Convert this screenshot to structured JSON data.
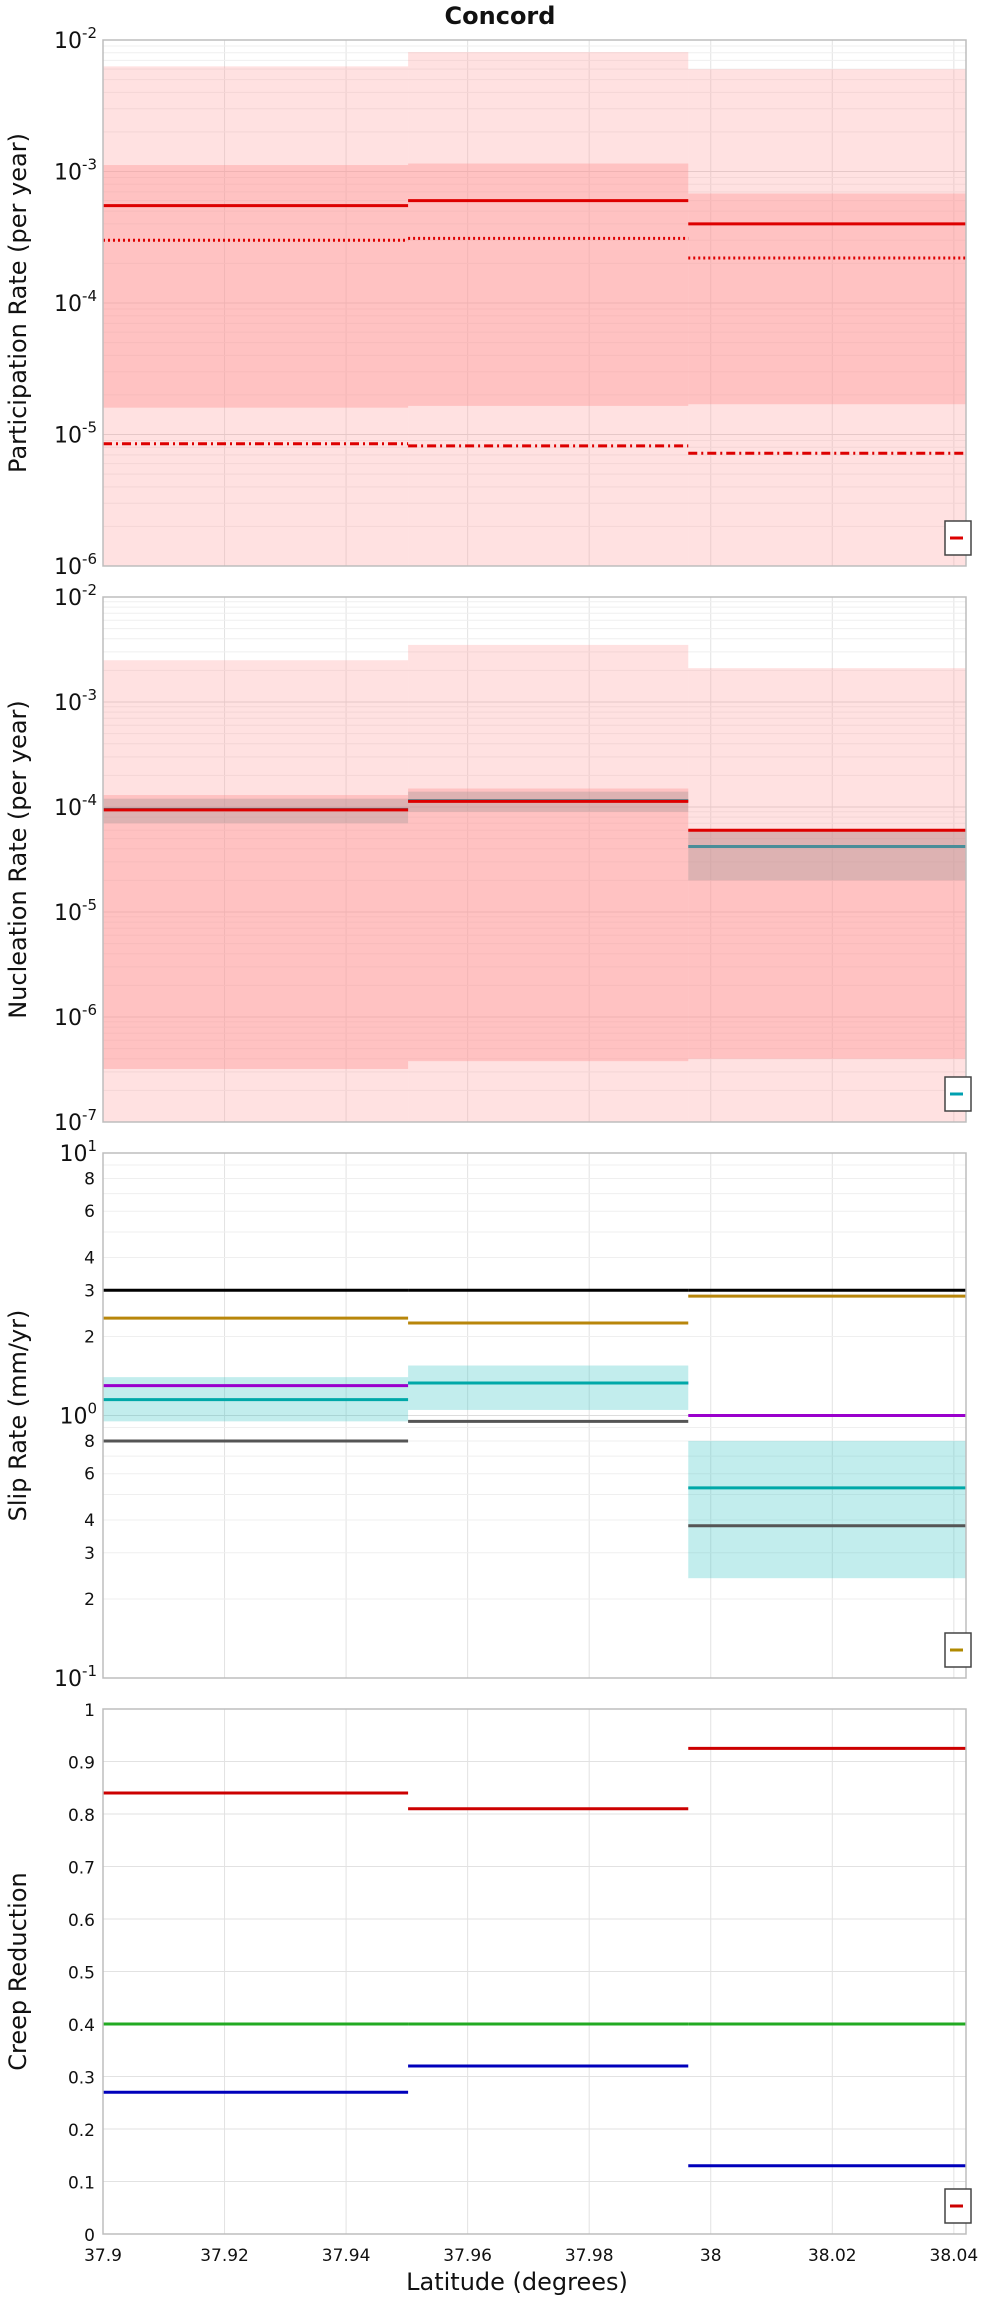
{
  "figure_title": "Concord",
  "x_axis": {
    "label": "Latitude (degrees)",
    "range": [
      37.9,
      38.042
    ],
    "ticks": [
      37.9,
      37.92,
      37.94,
      37.96,
      37.98,
      38.0,
      38.02,
      38.04
    ],
    "tick_labels": [
      "37.9",
      "37.92",
      "37.94",
      "37.96",
      "37.98",
      "38",
      "38.02",
      "38.04"
    ]
  },
  "chart_data": [
    {
      "type": "line",
      "step": true,
      "ylabel": "Participation Rate (per year)",
      "scale": "log",
      "ylim": [
        1e-06,
        0.01
      ],
      "grid": true,
      "legend": "bottom-right",
      "legend_colors": [
        "#dd0000"
      ],
      "major_ticks": [
        {
          "base": "10",
          "exp": "-2"
        },
        {
          "base": "10",
          "exp": "-3"
        },
        {
          "base": "10",
          "exp": "-4"
        },
        {
          "base": "10",
          "exp": "-5"
        },
        {
          "base": "10",
          "exp": "-6"
        }
      ],
      "segments": [
        [
          37.9,
          37.9502
        ],
        [
          37.9502,
          37.9963
        ],
        [
          37.9963,
          38.042
        ]
      ],
      "bands": [
        {
          "color": "#ff9c9c",
          "opacity": 0.3,
          "lower": [
            1e-06,
            1e-06,
            1e-06
          ],
          "upper": [
            0.0063,
            0.0081,
            0.006
          ]
        },
        {
          "color": "#ff9090",
          "opacity": 0.38,
          "lower": [
            1.6e-05,
            1.65e-05,
            1.7e-05
          ],
          "upper": [
            0.00112,
            0.00115,
            0.00068
          ]
        }
      ],
      "series": [
        {
          "style": "solid",
          "color": "#dd0000",
          "values": [
            0.00055,
            0.0006,
            0.0004
          ]
        },
        {
          "style": "dotted",
          "color": "#dd0000",
          "values": [
            0.0003,
            0.00031,
            0.00022
          ]
        },
        {
          "style": "dashdot",
          "color": "#dd0000",
          "values": [
            8.5e-06,
            8.2e-06,
            7.2e-06
          ]
        }
      ]
    },
    {
      "type": "line",
      "step": true,
      "ylabel": "Nucleation Rate (per year)",
      "scale": "log",
      "ylim": [
        1e-07,
        0.01
      ],
      "grid": true,
      "legend": "bottom-right",
      "legend_colors": [
        "#00a0b0"
      ],
      "major_ticks": [
        {
          "base": "10",
          "exp": "-2"
        },
        {
          "base": "10",
          "exp": "-3"
        },
        {
          "base": "10",
          "exp": "-4"
        },
        {
          "base": "10",
          "exp": "-5"
        },
        {
          "base": "10",
          "exp": "-6"
        },
        {
          "base": "10",
          "exp": "-7"
        }
      ],
      "segments": [
        [
          37.9,
          37.9502
        ],
        [
          37.9502,
          37.9963
        ],
        [
          37.9963,
          38.042
        ]
      ],
      "bands": [
        {
          "color": "#ff9c9c",
          "opacity": 0.3,
          "lower": [
            1e-07,
            1e-07,
            1e-07
          ],
          "upper": [
            0.0025,
            0.0035,
            0.0021
          ]
        },
        {
          "color": "#ff9090",
          "opacity": 0.38,
          "lower": [
            3.2e-07,
            3.8e-07,
            4e-07
          ],
          "upper": [
            0.00013,
            0.00015,
            6e-05
          ]
        },
        {
          "color": "#909090",
          "opacity": 0.3,
          "lower": [
            7e-05,
            9e-05,
            2e-05
          ],
          "upper": [
            0.00012,
            0.00014,
            6e-05
          ]
        }
      ],
      "series": [
        {
          "style": "solid",
          "color": "#4a8d98",
          "values": [
            9.5e-05,
            0.000115,
            4.2e-05
          ]
        },
        {
          "style": "solid",
          "color": "#dd0000",
          "values": [
            9.4e-05,
            0.000113,
            6e-05
          ]
        }
      ]
    },
    {
      "type": "line",
      "step": true,
      "ylabel": "Slip Rate (mm/yr)",
      "scale": "log",
      "ylim": [
        0.1,
        10
      ],
      "grid": true,
      "legend": "bottom-right",
      "legend_colors": [
        "#b08a00"
      ],
      "major_ticks": [
        {
          "base": "10",
          "exp": "1"
        },
        {
          "base": "10",
          "exp": "0"
        },
        {
          "base": "10",
          "exp": "-1"
        }
      ],
      "minor_labels": [
        {
          "value": 8,
          "label": "8"
        },
        {
          "value": 6,
          "label": "6"
        },
        {
          "value": 4,
          "label": "4"
        },
        {
          "value": 3,
          "label": "3"
        },
        {
          "value": 2,
          "label": "2"
        },
        {
          "value": 0.8,
          "label": "8"
        },
        {
          "value": 0.6,
          "label": "6"
        },
        {
          "value": 0.4,
          "label": "4"
        },
        {
          "value": 0.3,
          "label": "3"
        },
        {
          "value": 0.2,
          "label": "2"
        }
      ],
      "segments": [
        [
          37.9,
          37.9502
        ],
        [
          37.9502,
          37.9963
        ],
        [
          37.9963,
          38.042
        ]
      ],
      "bands": [
        {
          "color": "#40c8c8",
          "opacity": 0.32,
          "lower": [
            0.95,
            1.05,
            0.24
          ],
          "upper": [
            1.4,
            1.55,
            0.8
          ]
        }
      ],
      "series": [
        {
          "style": "solid",
          "color": "#000000",
          "values": [
            3.0,
            3.0,
            3.0
          ]
        },
        {
          "style": "solid",
          "color": "#b8860b",
          "values": [
            2.35,
            2.25,
            2.85
          ]
        },
        {
          "style": "solid",
          "color": "#9a00cc",
          "values": [
            1.3,
            1.33,
            1.0
          ]
        },
        {
          "style": "solid",
          "color": "#00a8a8",
          "values": [
            1.15,
            1.33,
            0.53
          ]
        },
        {
          "style": "solid",
          "color": "#555555",
          "values": [
            0.8,
            0.95,
            0.38
          ]
        }
      ]
    },
    {
      "type": "line",
      "step": true,
      "ylabel": "Creep Reduction",
      "scale": "linear",
      "ylim": [
        0,
        1
      ],
      "grid": true,
      "legend": "bottom-right",
      "legend_colors": [
        "#cc0000"
      ],
      "ticks": [
        {
          "value": 0,
          "label": "0"
        },
        {
          "value": 0.1,
          "label": "0.1"
        },
        {
          "value": 0.2,
          "label": "0.2"
        },
        {
          "value": 0.3,
          "label": "0.3"
        },
        {
          "value": 0.4,
          "label": "0.4"
        },
        {
          "value": 0.5,
          "label": "0.5"
        },
        {
          "value": 0.6,
          "label": "0.6"
        },
        {
          "value": 0.7,
          "label": "0.7"
        },
        {
          "value": 0.8,
          "label": "0.8"
        },
        {
          "value": 0.9,
          "label": "0.9"
        },
        {
          "value": 1,
          "label": "1"
        }
      ],
      "segments": [
        [
          37.9,
          37.9502
        ],
        [
          37.9502,
          37.9963
        ],
        [
          37.9963,
          38.042
        ]
      ],
      "bands": [],
      "series": [
        {
          "style": "solid",
          "color": "#cc0000",
          "values": [
            0.84,
            0.81,
            0.925
          ]
        },
        {
          "style": "solid",
          "color": "#22aa22",
          "values": [
            0.4,
            0.4,
            0.4
          ]
        },
        {
          "style": "solid",
          "color": "#0000bb",
          "values": [
            0.27,
            0.32,
            0.13
          ]
        }
      ]
    }
  ]
}
